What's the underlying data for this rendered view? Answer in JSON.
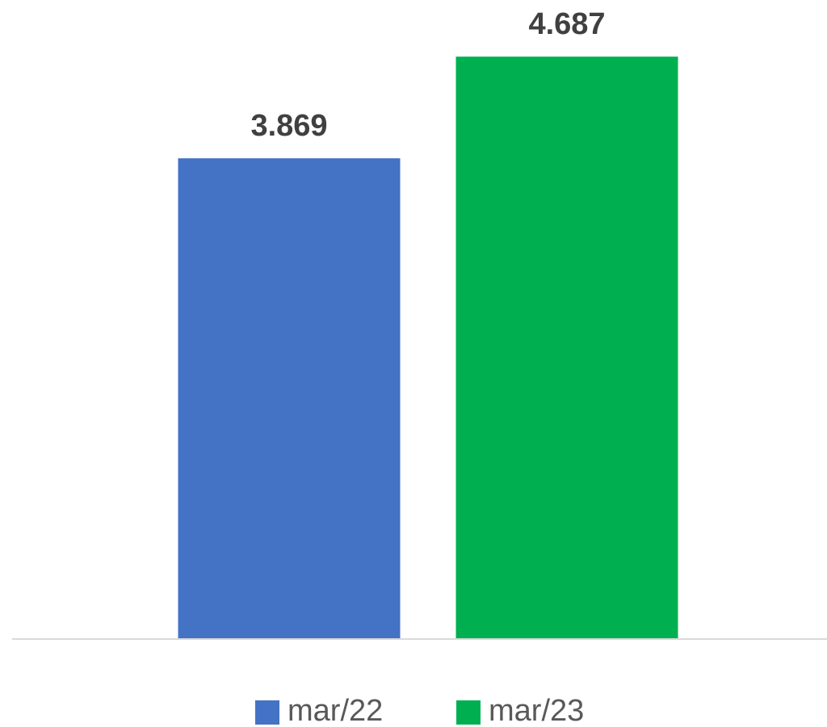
{
  "chart_data": {
    "type": "bar",
    "categories": [
      null
    ],
    "series": [
      {
        "name": "mar/22",
        "color": "#4472c4",
        "values": [
          3.869
        ]
      },
      {
        "name": "mar/23",
        "color": "#00b050",
        "values": [
          4.687
        ]
      }
    ],
    "ylim": [
      0,
      5
    ],
    "grid": false,
    "legend": "bottom"
  }
}
